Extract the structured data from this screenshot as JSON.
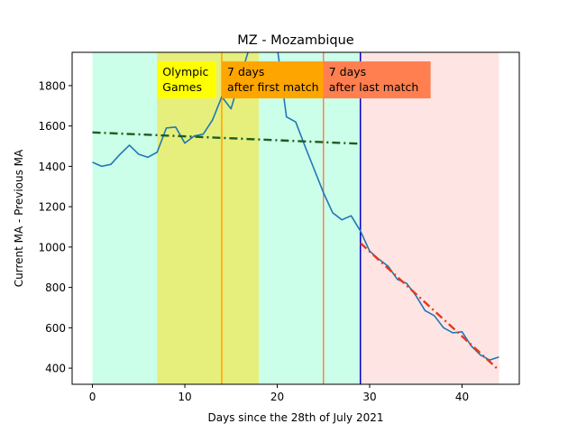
{
  "chart_data": {
    "type": "line",
    "title": "MZ - Mozambique",
    "xlabel": "Days since the 28th of July 2021",
    "ylabel": "Current MA - Previous MA",
    "xlim": [
      -2.2,
      46.2
    ],
    "ylim": [
      320,
      1965
    ],
    "xticks": [
      0,
      10,
      20,
      30,
      40
    ],
    "yticks": [
      400,
      600,
      800,
      1000,
      1200,
      1400,
      1600,
      1800
    ],
    "grid": false,
    "regions": [
      {
        "x0": 0,
        "x1": 29,
        "color": "#ccffe9"
      },
      {
        "x0": 7,
        "x1": 18,
        "color": "#e6ee7c"
      },
      {
        "x0": 29,
        "x1": 44,
        "color": "#ffe4e4"
      }
    ],
    "vlines": [
      {
        "x": 14,
        "color": "#ffa500"
      },
      {
        "x": 25,
        "color": "#ff7f50"
      },
      {
        "x": 29,
        "color": "#0000cd"
      }
    ],
    "annotations": [
      {
        "x": 7,
        "y_top": 1920,
        "lines": [
          "Olympic",
          "Games"
        ],
        "bg": "#ffff00",
        "text_span": [
          7,
          13.4
        ]
      },
      {
        "x": 14,
        "y_top": 1920,
        "lines": [
          "7 days",
          "after first match"
        ],
        "bg": "#ffa500",
        "text_span": [
          14,
          25
        ]
      },
      {
        "x": 25,
        "y_top": 1920,
        "lines": [
          "7 days",
          "after last match"
        ],
        "bg": "#ff7f50",
        "text_span": [
          25,
          36.6
        ]
      }
    ],
    "series": [
      {
        "color": "#1f77b4",
        "style": "solid",
        "x": [
          0,
          1,
          2,
          3,
          4,
          5,
          6,
          7,
          8,
          9,
          10,
          11,
          12,
          13,
          14,
          15,
          16,
          17,
          18,
          19,
          20,
          21,
          22,
          23,
          24,
          25,
          26,
          27,
          28,
          29,
          30,
          31,
          32,
          33,
          34,
          35,
          36,
          37,
          38,
          39,
          40,
          41,
          42,
          43,
          44
        ],
        "y": [
          1420,
          1400,
          1410,
          1460,
          1505,
          1460,
          1445,
          1470,
          1590,
          1595,
          1515,
          1550,
          1560,
          1630,
          1745,
          1685,
          1840,
          1990,
          1990,
          1990,
          1990,
          1645,
          1620,
          1500,
          1385,
          1270,
          1170,
          1135,
          1155,
          1080,
          980,
          940,
          905,
          840,
          820,
          760,
          685,
          660,
          600,
          575,
          580,
          510,
          465,
          440,
          455
        ]
      },
      {
        "color": "#1b5e20",
        "style": "dashdot",
        "x": [
          0,
          29
        ],
        "y": [
          1568,
          1512
        ]
      },
      {
        "color": "#e5391b",
        "style": "dashdot",
        "x": [
          29,
          44
        ],
        "y": [
          1020,
          390
        ]
      }
    ]
  }
}
